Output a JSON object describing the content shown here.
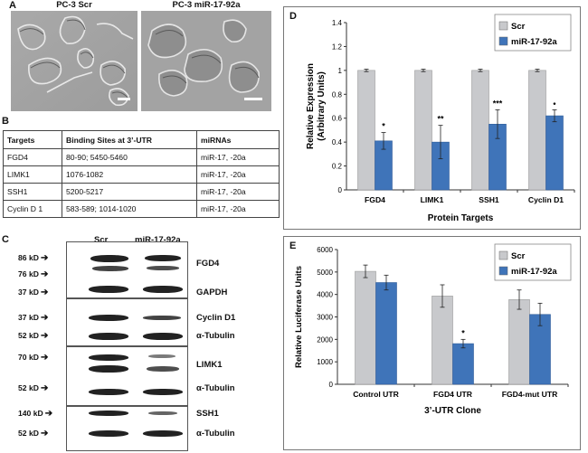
{
  "panels": {
    "a": "A",
    "b": "B",
    "c": "C",
    "d": "D",
    "e": "E"
  },
  "panel_a": {
    "left_title": "PC-3 Scr",
    "right_title": "PC-3 miR-17-92a"
  },
  "panel_b": {
    "headers": [
      "Targets",
      "Binding Sites at 3’-UTR",
      "miRNAs"
    ],
    "rows": [
      [
        "FGD4",
        "80-90; 5450-5460",
        "miR-17, -20a"
      ],
      [
        "LIMK1",
        "1076-1082",
        "miR-17, -20a"
      ],
      [
        "SSH1",
        "5200-5217",
        "miR-17, -20a"
      ],
      [
        "Cyclin D 1",
        "583-589; 1014-1020",
        "miR-17, -20a"
      ]
    ]
  },
  "panel_c": {
    "lane_headers": [
      "Scr",
      "miR-17-92a"
    ],
    "markers": [
      "86 kD",
      "76 kD",
      "37 kD",
      "37 kD",
      "52 kD",
      "70 kD",
      "52 kD",
      "140 kD",
      "52 kD"
    ],
    "proteins": [
      "FGD4",
      "GAPDH",
      "Cyclin D1",
      "α-Tubulin",
      "LIMK1",
      "α-Tubulin",
      "SSH1",
      "α-Tubulin"
    ]
  },
  "colors": {
    "scr": "#c8c9cc",
    "mir": "#3f74b9",
    "frame": "#777777"
  },
  "chart_data": [
    {
      "type": "bar",
      "panel": "D",
      "categories": [
        "FGD4",
        "LIMK1",
        "SSH1",
        "Cyclin D1"
      ],
      "series": [
        {
          "name": "Scr",
          "values": [
            1,
            1,
            1,
            1
          ],
          "errors": [
            0.01,
            0.01,
            0.01,
            0.01
          ]
        },
        {
          "name": "miR-17-92a",
          "values": [
            0.41,
            0.4,
            0.55,
            0.62
          ],
          "errors": [
            0.07,
            0.14,
            0.12,
            0.05
          ]
        }
      ],
      "significance": [
        "*",
        "**",
        "***",
        "•"
      ],
      "xlabel": "Protein Targets",
      "ylabel": "Relative Expression (Arbitrary Units)",
      "ylim": [
        0,
        1.4
      ],
      "yticks": [
        "0",
        "0.2",
        "0.4",
        "0.6",
        "0.8",
        "1",
        "1.2",
        "1.4"
      ],
      "legend": "top-right",
      "grid": false
    },
    {
      "type": "bar",
      "panel": "E",
      "categories": [
        "Control UTR",
        "FGD4 UTR",
        "FGD4-mut UTR"
      ],
      "series": [
        {
          "name": "Scr",
          "values": [
            5030,
            3930,
            3770
          ],
          "errors": [
            280,
            500,
            430
          ]
        },
        {
          "name": "miR-17-92a",
          "values": [
            4530,
            1810,
            3110
          ],
          "errors": [
            330,
            190,
            500
          ]
        }
      ],
      "significance": [
        "",
        "*",
        ""
      ],
      "xlabel": "3’-UTR Clone",
      "ylabel": "Relative Luciferase Units",
      "ylim": [
        0,
        6000
      ],
      "yticks": [
        "0",
        "1000",
        "2000",
        "3000",
        "4000",
        "5000",
        "6000"
      ],
      "legend": "top-right",
      "grid": false
    }
  ]
}
